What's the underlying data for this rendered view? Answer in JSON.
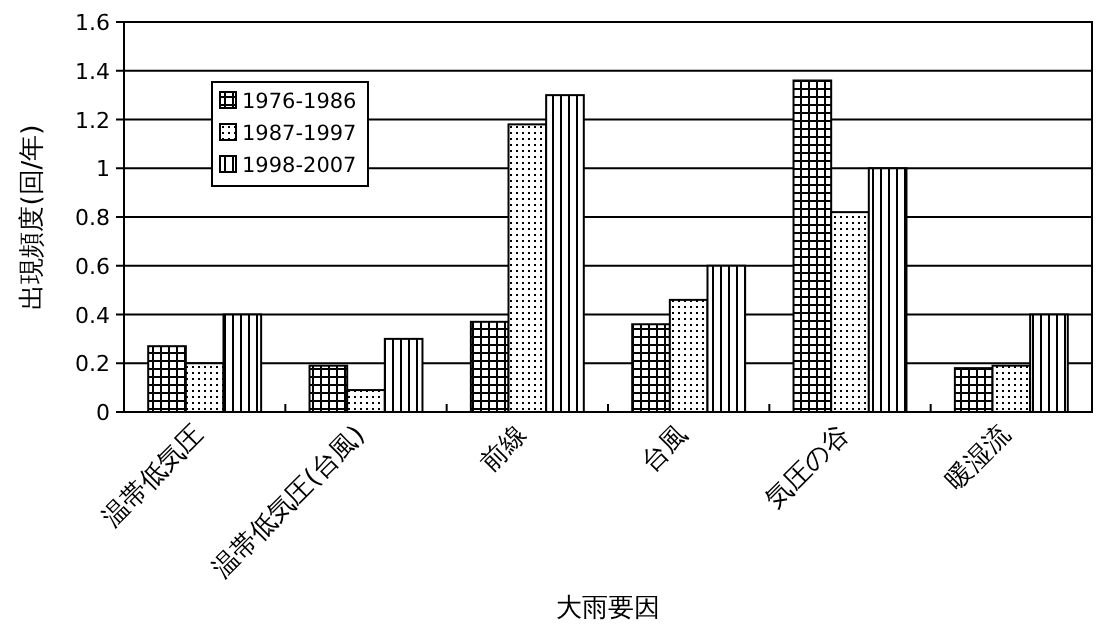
{
  "chart_data": {
    "type": "bar",
    "xlabel": "大雨要因",
    "ylabel": "出現頻度(回/年)",
    "categories": [
      "温帯低気圧",
      "温帯低気圧(台風)",
      "前線",
      "台風",
      "気圧の谷",
      "暖湿流"
    ],
    "series": [
      {
        "name": "1976-1986",
        "color": "#000000",
        "values": [
          0.27,
          0.19,
          0.37,
          0.36,
          1.36,
          0.18
        ]
      },
      {
        "name": "1987-1997",
        "color": "#000000",
        "values": [
          0.2,
          0.09,
          1.18,
          0.46,
          0.82,
          0.19
        ]
      },
      {
        "name": "1998-2007",
        "color": "#000000",
        "values": [
          0.4,
          0.3,
          1.3,
          0.6,
          1.0,
          0.4
        ]
      }
    ],
    "ylim": [
      0,
      1.6
    ],
    "yticks": [
      0,
      0.2,
      0.4,
      0.6,
      0.8,
      1,
      1.2,
      1.4,
      1.6
    ],
    "grid": "y",
    "legend": "top left"
  }
}
